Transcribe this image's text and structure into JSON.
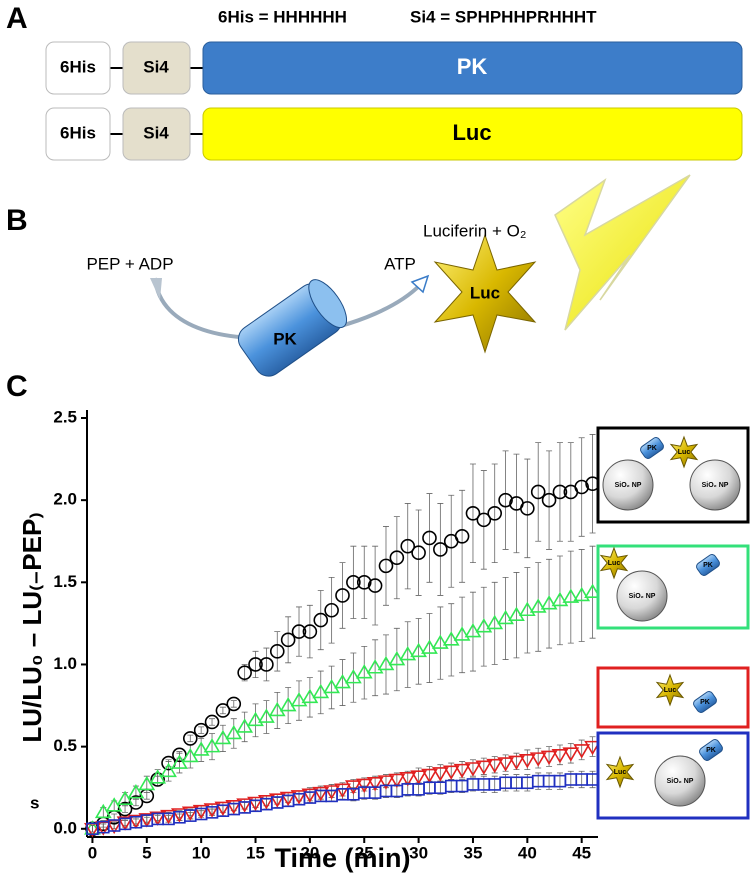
{
  "panel_a": {
    "label": "A",
    "legend": [
      "6His = HHHHHH",
      "Si4 = SPHPHHPRHHHT"
    ],
    "constructs": [
      [
        "6His",
        "Si4",
        "PK"
      ],
      [
        "6His",
        "Si4",
        "Luc"
      ]
    ]
  },
  "panel_b": {
    "label": "B",
    "substrates": "PEP + ADP",
    "product": "ATP",
    "luciferin": "Luciferin + O₂",
    "enzyme1": "PK",
    "enzyme2": "Luc"
  },
  "panel_c_label": "C",
  "chart_data": {
    "type": "scatter",
    "xlabel": "Time (min)",
    "ylabel": "LU/LU₀ – LU₍₋PEP₎",
    "annotation": "s",
    "x": [
      0,
      1,
      2,
      3,
      4,
      5,
      6,
      7,
      8,
      9,
      10,
      11,
      12,
      13,
      14,
      15,
      16,
      17,
      18,
      19,
      20,
      21,
      22,
      23,
      24,
      25,
      26,
      27,
      28,
      29,
      30,
      31,
      32,
      33,
      34,
      35,
      36,
      37,
      38,
      39,
      40,
      41,
      42,
      43,
      44,
      45,
      46
    ],
    "series": [
      {
        "color": "#000000",
        "marker": "circle",
        "values": [
          0,
          0.03,
          0.07,
          0.12,
          0.16,
          0.2,
          0.3,
          0.4,
          0.45,
          0.55,
          0.6,
          0.65,
          0.72,
          0.76,
          0.95,
          1.0,
          1.0,
          1.08,
          1.15,
          1.2,
          1.2,
          1.27,
          1.33,
          1.42,
          1.5,
          1.5,
          1.48,
          1.6,
          1.65,
          1.72,
          1.68,
          1.77,
          1.7,
          1.75,
          1.78,
          1.92,
          1.88,
          1.92,
          2.0,
          1.98,
          1.95,
          2.05,
          2.0,
          2.05,
          2.05,
          2.08,
          2.1
        ],
        "errors": [
          0.02,
          0.02,
          0.02,
          0.02,
          0.02,
          0.02,
          0.02,
          0.02,
          0.02,
          0.02,
          0.02,
          0.02,
          0.02,
          0.02,
          0.05,
          0.08,
          0.1,
          0.12,
          0.14,
          0.15,
          0.16,
          0.18,
          0.2,
          0.2,
          0.22,
          0.22,
          0.24,
          0.24,
          0.25,
          0.26,
          0.26,
          0.27,
          0.28,
          0.28,
          0.28,
          0.3,
          0.3,
          0.3,
          0.3,
          0.3,
          0.3,
          0.3,
          0.3,
          0.3,
          0.3,
          0.3,
          0.3
        ]
      },
      {
        "color": "#33e855",
        "marker": "triangle-up",
        "values": [
          0,
          0.1,
          0.14,
          0.18,
          0.22,
          0.27,
          0.31,
          0.35,
          0.4,
          0.44,
          0.48,
          0.5,
          0.55,
          0.58,
          0.62,
          0.66,
          0.68,
          0.72,
          0.75,
          0.78,
          0.8,
          0.83,
          0.86,
          0.89,
          0.92,
          0.95,
          0.98,
          1.0,
          1.03,
          1.06,
          1.08,
          1.1,
          1.13,
          1.15,
          1.18,
          1.2,
          1.23,
          1.25,
          1.28,
          1.3,
          1.33,
          1.35,
          1.37,
          1.39,
          1.41,
          1.42,
          1.44
        ],
        "errors": [
          0.02,
          0.03,
          0.03,
          0.04,
          0.04,
          0.05,
          0.05,
          0.06,
          0.06,
          0.07,
          0.07,
          0.08,
          0.08,
          0.09,
          0.09,
          0.1,
          0.1,
          0.11,
          0.11,
          0.12,
          0.12,
          0.13,
          0.13,
          0.14,
          0.15,
          0.16,
          0.17,
          0.18,
          0.19,
          0.2,
          0.2,
          0.21,
          0.22,
          0.22,
          0.23,
          0.24,
          0.24,
          0.25,
          0.25,
          0.26,
          0.26,
          0.27,
          0.27,
          0.27,
          0.28,
          0.28,
          0.28
        ]
      },
      {
        "color": "#e02020",
        "marker": "triangle-down",
        "values": [
          0,
          0.01,
          0.02,
          0.04,
          0.05,
          0.06,
          0.07,
          0.08,
          0.09,
          0.1,
          0.11,
          0.12,
          0.13,
          0.14,
          0.15,
          0.16,
          0.17,
          0.18,
          0.19,
          0.2,
          0.21,
          0.22,
          0.23,
          0.24,
          0.26,
          0.27,
          0.28,
          0.29,
          0.3,
          0.31,
          0.32,
          0.33,
          0.34,
          0.35,
          0.36,
          0.37,
          0.38,
          0.39,
          0.4,
          0.41,
          0.42,
          0.43,
          0.44,
          0.45,
          0.46,
          0.48,
          0.5
        ],
        "errors": [
          0.02,
          0.02,
          0.02,
          0.02,
          0.02,
          0.02,
          0.02,
          0.02,
          0.02,
          0.02,
          0.03,
          0.03,
          0.03,
          0.03,
          0.03,
          0.03,
          0.03,
          0.03,
          0.03,
          0.03,
          0.04,
          0.04,
          0.04,
          0.04,
          0.04,
          0.04,
          0.04,
          0.04,
          0.04,
          0.04,
          0.05,
          0.05,
          0.05,
          0.05,
          0.05,
          0.05,
          0.05,
          0.05,
          0.05,
          0.05,
          0.06,
          0.06,
          0.06,
          0.06,
          0.06,
          0.06,
          0.06
        ]
      },
      {
        "color": "#2030c0",
        "marker": "square",
        "values": [
          0,
          0.01,
          0.02,
          0.03,
          0.04,
          0.05,
          0.06,
          0.06,
          0.07,
          0.08,
          0.09,
          0.1,
          0.11,
          0.12,
          0.13,
          0.14,
          0.15,
          0.16,
          0.17,
          0.18,
          0.19,
          0.2,
          0.2,
          0.21,
          0.21,
          0.22,
          0.22,
          0.23,
          0.23,
          0.24,
          0.24,
          0.25,
          0.25,
          0.26,
          0.26,
          0.27,
          0.27,
          0.27,
          0.28,
          0.28,
          0.28,
          0.29,
          0.29,
          0.29,
          0.3,
          0.3,
          0.3
        ],
        "errors": [
          0.02,
          0.02,
          0.02,
          0.02,
          0.02,
          0.02,
          0.02,
          0.02,
          0.02,
          0.02,
          0.02,
          0.02,
          0.03,
          0.03,
          0.03,
          0.03,
          0.03,
          0.03,
          0.03,
          0.03,
          0.03,
          0.03,
          0.03,
          0.03,
          0.04,
          0.04,
          0.04,
          0.04,
          0.04,
          0.04,
          0.04,
          0.04,
          0.04,
          0.04,
          0.04,
          0.04,
          0.05,
          0.05,
          0.05,
          0.05,
          0.05,
          0.05,
          0.05,
          0.05,
          0.05,
          0.05,
          0.05
        ]
      }
    ],
    "xlim": [
      -0.5,
      46.5
    ],
    "ylim": [
      -0.05,
      2.5
    ],
    "xticks": [
      0,
      5,
      10,
      15,
      20,
      25,
      30,
      35,
      40,
      45
    ],
    "yticks": [
      {
        "value": 0,
        "label": "0.0"
      },
      0.5,
      {
        "value": 1,
        "label": "1.0"
      },
      1.5,
      {
        "value": 2,
        "label": "2.0"
      },
      2.5
    ]
  },
  "insets": [
    {
      "color": "#000000",
      "labels": [
        "PK",
        "Luc",
        "SiO₂ NP",
        "SiO₂ NP"
      ]
    },
    {
      "color": "#33e07a",
      "labels": [
        "Luc",
        "SiO₂ NP",
        "PK"
      ]
    },
    {
      "color": "#e02020",
      "labels": [
        "Luc",
        "PK"
      ]
    },
    {
      "color": "#2030c0",
      "labels": [
        "Luc",
        "SiO₂ NP",
        "PK"
      ]
    }
  ]
}
